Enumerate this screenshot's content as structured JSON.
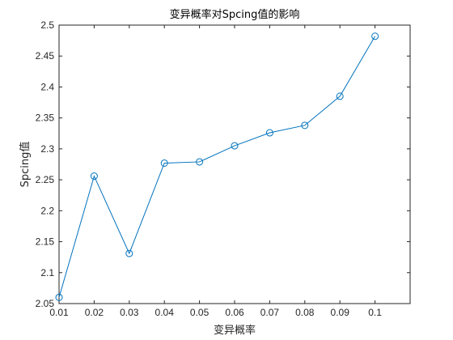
{
  "chart_data": {
    "type": "line",
    "title": "变异概率对Spcing值的影响",
    "xlabel": "变异概率",
    "ylabel": "Spcing值",
    "xlim": [
      0.01,
      0.11
    ],
    "ylim": [
      2.05,
      2.5
    ],
    "x_ticks": [
      0.01,
      0.02,
      0.03,
      0.04,
      0.05,
      0.06,
      0.07,
      0.08,
      0.09,
      0.1
    ],
    "x_tick_labels": [
      "0.01",
      "0.02",
      "0.03",
      "0.04",
      "0.05",
      "0.06",
      "0.07",
      "0.08",
      "0.09",
      "0.1"
    ],
    "y_ticks": [
      2.05,
      2.1,
      2.15,
      2.2,
      2.25,
      2.3,
      2.35,
      2.4,
      2.45,
      2.5
    ],
    "y_tick_labels": [
      "2.05",
      "2.1",
      "2.15",
      "2.2",
      "2.25",
      "2.3",
      "2.35",
      "2.4",
      "2.45",
      "2.5"
    ],
    "grid": false,
    "marker": "circle",
    "series": [
      {
        "color": "#0072BD",
        "x": [
          0.01,
          0.02,
          0.03,
          0.04,
          0.05,
          0.06,
          0.07,
          0.08,
          0.09,
          0.1
        ],
        "y": [
          2.06,
          2.256,
          2.131,
          2.277,
          2.279,
          2.305,
          2.326,
          2.338,
          2.385,
          2.482
        ]
      }
    ]
  }
}
